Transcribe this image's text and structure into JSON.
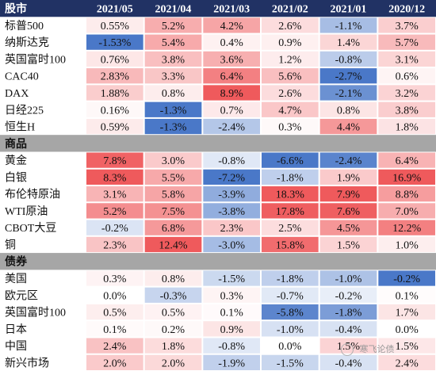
{
  "chart_data": {
    "type": "heatmap",
    "header_label": "股市",
    "columns": [
      "2021/05",
      "2021/04",
      "2021/03",
      "2021/02",
      "2021/01",
      "2020/12"
    ],
    "sections": [
      {
        "name": "股市",
        "rows": [
          {
            "label": "标普500",
            "values": [
              0.55,
              5.2,
              4.2,
              2.6,
              -1.1,
              3.7
            ],
            "texts": [
              "0.55%",
              "5.2%",
              "4.2%",
              "2.6%",
              "-1.1%",
              "3.7%"
            ]
          },
          {
            "label": "纳斯达克",
            "values": [
              -1.53,
              5.4,
              0.4,
              0.9,
              1.4,
              5.7
            ],
            "texts": [
              "-1.53%",
              "5.4%",
              "0.4%",
              "0.9%",
              "1.4%",
              "5.7%"
            ]
          },
          {
            "label": "英国富时100",
            "values": [
              0.76,
              3.8,
              3.6,
              1.2,
              -0.8,
              3.1
            ],
            "texts": [
              "0.76%",
              "3.8%",
              "3.6%",
              "1.2%",
              "-0.8%",
              "3.1%"
            ]
          },
          {
            "label": "CAC40",
            "values": [
              2.83,
              3.3,
              6.4,
              5.6,
              -2.7,
              0.6
            ],
            "texts": [
              "2.83%",
              "3.3%",
              "6.4%",
              "5.6%",
              "-2.7%",
              "0.6%"
            ]
          },
          {
            "label": "DAX",
            "values": [
              1.88,
              0.8,
              8.9,
              2.6,
              -2.1,
              3.2
            ],
            "texts": [
              "1.88%",
              "0.8%",
              "8.9%",
              "2.6%",
              "-2.1%",
              "3.2%"
            ]
          },
          {
            "label": "日经225",
            "values": [
              0.16,
              -1.3,
              0.7,
              4.7,
              0.8,
              3.8
            ],
            "texts": [
              "0.16%",
              "-1.3%",
              "0.7%",
              "4.7%",
              "0.8%",
              "3.8%"
            ]
          },
          {
            "label": "恒生H",
            "values": [
              0.59,
              -1.3,
              -2.4,
              0.3,
              4.4,
              1.8
            ],
            "texts": [
              "0.59%",
              "-1.3%",
              "-2.4%",
              "0.3%",
              "4.4%",
              "1.8%"
            ]
          }
        ]
      },
      {
        "name": "商品",
        "rows": [
          {
            "label": "黄金",
            "values": [
              7.8,
              3.0,
              -0.8,
              -6.6,
              -2.4,
              6.4
            ],
            "texts": [
              "7.8%",
              "3.0%",
              "-0.8%",
              "-6.6%",
              "-2.4%",
              "6.4%"
            ]
          },
          {
            "label": "白银",
            "values": [
              8.3,
              5.5,
              -7.2,
              -1.8,
              1.9,
              16.9
            ],
            "texts": [
              "8.3%",
              "5.5%",
              "-7.2%",
              "-1.8%",
              "1.9%",
              "16.9%"
            ]
          },
          {
            "label": "布伦特原油",
            "values": [
              3.1,
              5.8,
              -3.9,
              18.3,
              7.9,
              8.8
            ],
            "texts": [
              "3.1%",
              "5.8%",
              "-3.9%",
              "18.3%",
              "7.9%",
              "8.8%"
            ]
          },
          {
            "label": "WTI原油",
            "values": [
              5.2,
              7.5,
              -3.8,
              17.8,
              7.6,
              7.0
            ],
            "texts": [
              "5.2%",
              "7.5%",
              "-3.8%",
              "17.8%",
              "7.6%",
              "7.0%"
            ]
          },
          {
            "label": "CBOT大豆",
            "values": [
              -0.2,
              6.8,
              2.3,
              2.5,
              4.5,
              12.2
            ],
            "texts": [
              "-0.2%",
              "6.8%",
              "2.3%",
              "2.5%",
              "4.5%",
              "12.2%"
            ]
          },
          {
            "label": "铜",
            "values": [
              2.3,
              12.4,
              -3.0,
              15.8,
              1.5,
              1.0
            ],
            "texts": [
              "2.3%",
              "12.4%",
              "-3.0%",
              "15.8%",
              "1.5%",
              "1.0%"
            ]
          }
        ]
      },
      {
        "name": "债券",
        "rows": [
          {
            "label": "美国",
            "values": [
              0.3,
              0.8,
              -1.5,
              -1.8,
              -1.0,
              -0.2
            ],
            "texts": [
              "0.3%",
              "0.8%",
              "-1.5%",
              "-1.8%",
              "-1.0%",
              "-0.2%"
            ]
          },
          {
            "label": "欧元区",
            "values": [
              0.0,
              -0.3,
              0.3,
              -0.7,
              -0.2,
              0.1
            ],
            "texts": [
              "0.0%",
              "-0.3%",
              "0.3%",
              "-0.7%",
              "-0.2%",
              "0.1%"
            ]
          },
          {
            "label": "英国富时100",
            "values": [
              0.5,
              0.5,
              0.1,
              -5.8,
              -1.8,
              1.7
            ],
            "texts": [
              "0.5%",
              "0.5%",
              "0.1%",
              "-5.8%",
              "-1.8%",
              "1.7%"
            ]
          },
          {
            "label": "日本",
            "values": [
              0.1,
              0.2,
              0.9,
              -1.0,
              -0.4,
              0.0
            ],
            "texts": [
              "0.1%",
              "0.2%",
              "0.9%",
              "-1.0%",
              "-0.4%",
              "0.0%"
            ]
          },
          {
            "label": "中国",
            "values": [
              2.4,
              1.8,
              -0.8,
              0.0,
              1.5,
              1.5
            ],
            "texts": [
              "2.4%",
              "1.8%",
              "-0.8%",
              "0.0%",
              "1.5%",
              "1.5%"
            ]
          },
          {
            "label": "新兴市场",
            "values": [
              2.0,
              2.0,
              -1.9,
              -1.5,
              -0.4,
              2.4
            ],
            "texts": [
              "2.0%",
              "2.0%",
              "-1.9%",
              "-1.5%",
              "-0.4%",
              "2.4%"
            ]
          }
        ]
      }
    ]
  },
  "colors": {
    "header_bg": "#213264",
    "header_text": "#ffffff",
    "section_bg": "#a6a6a6",
    "positive_strong": "#ef5a5c",
    "negative_strong": "#4a78c8",
    "neutral": "#ffffff",
    "grid": "#ffffff"
  },
  "watermark": {
    "text": "寒飞论债",
    "icon": "wechat-logo-icon"
  }
}
